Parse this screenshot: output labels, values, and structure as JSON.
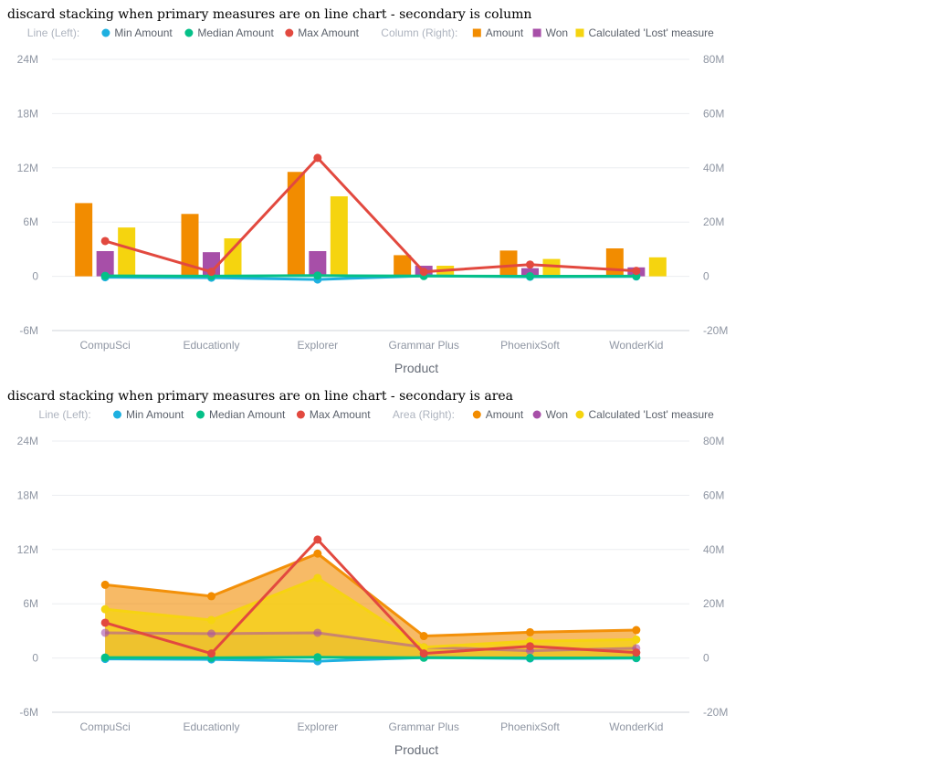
{
  "chart_data": [
    {
      "type": "combo",
      "title": "discard stacking when primary measures are on line chart - secondary is column",
      "xlabel": "Product",
      "categories": [
        "CompuSci",
        "Educationly",
        "Explorer",
        "Grammar Plus",
        "PhoenixSoft",
        "WonderKid"
      ],
      "left_axis": {
        "label": "",
        "ylim": [
          -6000000,
          24000000
        ],
        "ticks": [
          -6000000,
          0,
          6000000,
          12000000,
          18000000,
          24000000
        ],
        "tick_labels": [
          "-6M",
          "0",
          "6M",
          "12M",
          "18M",
          "24M"
        ]
      },
      "right_axis": {
        "label": "",
        "ylim": [
          -20000000,
          80000000
        ],
        "ticks": [
          -20000000,
          0,
          20000000,
          40000000,
          60000000,
          80000000
        ],
        "tick_labels": [
          "-20M",
          "0",
          "20M",
          "40M",
          "60M",
          "80M"
        ]
      },
      "legend": {
        "position": "top",
        "primary_group": "Line (Left):",
        "secondary_group": "Column (Right):"
      },
      "grid": true,
      "series_primary": [
        {
          "name": "Min Amount",
          "type": "line",
          "color": "#1eb0e0",
          "values": [
            -100000,
            -150000,
            -350000,
            50000,
            -50000,
            -20000
          ]
        },
        {
          "name": "Median Amount",
          "type": "line",
          "color": "#05c088",
          "values": [
            50000,
            20000,
            80000,
            30000,
            10000,
            20000
          ]
        },
        {
          "name": "Max Amount",
          "type": "line",
          "color": "#e2493f",
          "values": [
            3900000,
            500000,
            13100000,
            500000,
            1300000,
            600000
          ]
        }
      ],
      "series_secondary": [
        {
          "name": "Amount",
          "type": "column",
          "color": "#f28c00",
          "values": [
            27000000,
            23000000,
            38500000,
            7800000,
            9500000,
            10300000
          ]
        },
        {
          "name": "Won",
          "type": "column",
          "color": "#a74fa8",
          "values": [
            9300000,
            8900000,
            9300000,
            3900000,
            3000000,
            3300000
          ]
        },
        {
          "name": "Calculated 'Lost' measure",
          "type": "column",
          "color": "#f5d40f",
          "values": [
            18000000,
            14000000,
            29500000,
            3900000,
            6400000,
            7000000
          ]
        }
      ]
    },
    {
      "type": "combo",
      "title": "discard stacking when primary measures are on line chart - secondary is area",
      "xlabel": "Product",
      "categories": [
        "CompuSci",
        "Educationly",
        "Explorer",
        "Grammar Plus",
        "PhoenixSoft",
        "WonderKid"
      ],
      "left_axis": {
        "label": "",
        "ylim": [
          -6000000,
          24000000
        ],
        "ticks": [
          -6000000,
          0,
          6000000,
          12000000,
          18000000,
          24000000
        ],
        "tick_labels": [
          "-6M",
          "0",
          "6M",
          "12M",
          "18M",
          "24M"
        ]
      },
      "right_axis": {
        "label": "",
        "ylim": [
          -20000000,
          80000000
        ],
        "ticks": [
          -20000000,
          0,
          20000000,
          40000000,
          60000000,
          80000000
        ],
        "tick_labels": [
          "-20M",
          "0",
          "20M",
          "40M",
          "60M",
          "80M"
        ]
      },
      "legend": {
        "position": "top",
        "primary_group": "Line (Left):",
        "secondary_group": "Area (Right):"
      },
      "grid": true,
      "series_primary": [
        {
          "name": "Min Amount",
          "type": "line",
          "color": "#1eb0e0",
          "values": [
            -100000,
            -150000,
            -350000,
            50000,
            -50000,
            -20000
          ]
        },
        {
          "name": "Median Amount",
          "type": "line",
          "color": "#05c088",
          "values": [
            50000,
            20000,
            80000,
            30000,
            10000,
            20000
          ]
        },
        {
          "name": "Max Amount",
          "type": "line",
          "color": "#e2493f",
          "values": [
            3900000,
            500000,
            13100000,
            500000,
            1300000,
            600000
          ]
        }
      ],
      "series_secondary": [
        {
          "name": "Amount",
          "type": "area",
          "color": "#f28c00",
          "values": [
            27000000,
            22800000,
            38500000,
            8100000,
            9500000,
            10300000
          ]
        },
        {
          "name": "Won",
          "type": "area",
          "color": "#a74fa8",
          "values": [
            9300000,
            9000000,
            9300000,
            4000000,
            2700000,
            3600000
          ]
        },
        {
          "name": "Calculated 'Lost' measure",
          "type": "area",
          "color": "#f5d40f",
          "values": [
            18000000,
            14000000,
            29500000,
            4000000,
            6200000,
            6800000
          ]
        }
      ]
    }
  ]
}
